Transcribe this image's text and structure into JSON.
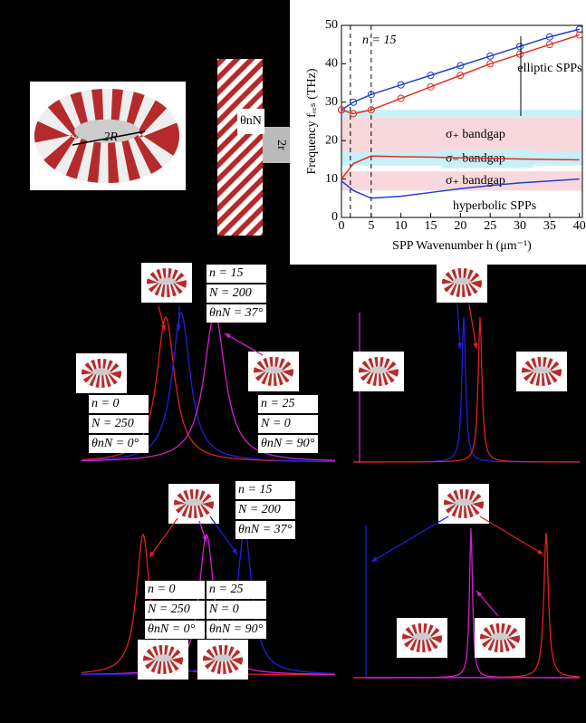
{
  "panel_a": {
    "label": "2R"
  },
  "panel_b": {
    "angle_label": "θnN",
    "radius_label": "2r"
  },
  "chart_data": {
    "type": "line",
    "xlabel": "SPP Wavenumber h (μm⁻¹)",
    "ylabel": "Frequency fᵣₑₛ (THz)",
    "xlim": [
      0,
      40.5
    ],
    "ylim": [
      0,
      50
    ],
    "xticks": [
      0,
      5,
      10,
      15,
      20,
      25,
      30,
      35,
      40
    ],
    "yticks": [
      0,
      10,
      20,
      30,
      40,
      50
    ],
    "annotations": [
      "n = 15",
      "elliptic SPPs",
      "hyperbolic SPPs"
    ],
    "vlines": [
      1.5,
      5
    ],
    "bands": [
      {
        "from": 26,
        "to": 28,
        "color": "#c8f0f8"
      },
      {
        "from": 17,
        "to": 26,
        "color": "#f8d8dc",
        "label": "σ₊ bandgap"
      },
      {
        "from": 13.5,
        "to": 17,
        "color": "#c8f0f8",
        "label": "σ₋ bandgap"
      },
      {
        "from": 7,
        "to": 12,
        "color": "#f8d8dc",
        "label": "σ₊ bandgap"
      }
    ],
    "x": [
      0,
      2,
      5,
      10,
      15,
      20,
      25,
      30,
      35,
      40
    ],
    "series": [
      {
        "color": "#2040d0",
        "marker": "circle",
        "values": [
          28,
          30,
          32,
          34.5,
          37,
          39.5,
          42,
          44.5,
          47,
          49
        ]
      },
      {
        "color": "#e03020",
        "marker": "circle",
        "values": [
          28,
          27,
          28,
          31,
          34,
          37,
          40,
          42.5,
          45,
          47.5
        ]
      },
      {
        "color": "#e03020",
        "values": [
          10,
          14,
          16,
          15.8,
          15.7,
          15.5,
          15.4,
          15.2,
          15.1,
          15
        ]
      },
      {
        "color": "#2040d0",
        "values": [
          9.5,
          7,
          5,
          5.5,
          6.5,
          7.5,
          8.3,
          9,
          9.5,
          10
        ]
      }
    ]
  },
  "panel_c": {
    "groups": [
      [
        "n = 15",
        "N = 200",
        "θnN = 37°"
      ],
      [
        "n = 0",
        "N = 250",
        "θnN = 0°"
      ],
      [
        "n = 25",
        "N = 0",
        "θnN = 90°"
      ]
    ]
  },
  "panel_e": {
    "groups": [
      [
        "n = 15",
        "N = 200",
        "θnN = 37°"
      ],
      [
        "n = 0",
        "N = 250",
        "θnN = 0°"
      ],
      [
        "n = 25",
        "N = 0",
        "θnN = 90°"
      ]
    ]
  }
}
